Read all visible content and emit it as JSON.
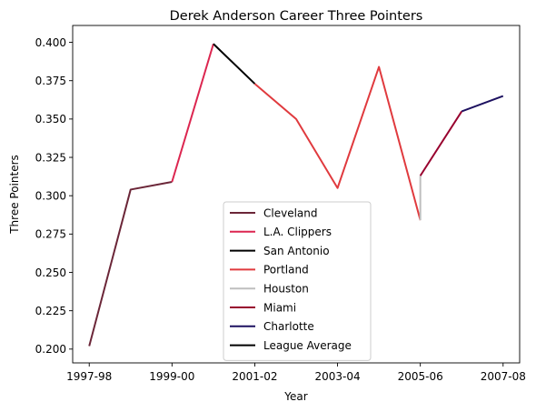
{
  "chart_data": {
    "type": "line",
    "title": "Derek Anderson  Career Three Pointers",
    "xlabel": "Year",
    "ylabel": "Three Pointers",
    "xlim": [
      -0.4,
      10.4
    ],
    "ylim": [
      0.191,
      0.411
    ],
    "xticks": [
      0,
      2,
      4,
      6,
      8,
      10
    ],
    "xtick_labels": [
      "1997-98",
      "1999-00",
      "2001-02",
      "2003-04",
      "2005-06",
      "2007-08"
    ],
    "yticks": [
      0.2,
      0.225,
      0.25,
      0.275,
      0.3,
      0.325,
      0.35,
      0.375,
      0.4
    ],
    "ytick_labels": [
      "0.200",
      "0.225",
      "0.250",
      "0.275",
      "0.300",
      "0.325",
      "0.350",
      "0.375",
      "0.400"
    ],
    "grid": false,
    "legend_position": "lower-center",
    "series": [
      {
        "name": "Cleveland",
        "color": "#6b2638",
        "points": [
          [
            0,
            0.202
          ],
          [
            1,
            0.304
          ],
          [
            2,
            0.309
          ]
        ]
      },
      {
        "name": "L.A. Clippers",
        "color": "#dc2650",
        "points": [
          [
            2,
            0.309
          ],
          [
            3,
            0.399
          ]
        ]
      },
      {
        "name": "San Antonio",
        "color": "#000000",
        "points": [
          [
            3,
            0.399
          ],
          [
            4,
            0.373
          ]
        ]
      },
      {
        "name": "Portland",
        "color": "#e03a3e",
        "points": [
          [
            4,
            0.373
          ],
          [
            5,
            0.35
          ],
          [
            6,
            0.305
          ],
          [
            7,
            0.384
          ],
          [
            8,
            0.284
          ]
        ]
      },
      {
        "name": "Houston",
        "color": "#bfbfbf",
        "points": [
          [
            8,
            0.284
          ],
          [
            8,
            0.313
          ]
        ]
      },
      {
        "name": "Miami",
        "color": "#98002e",
        "points": [
          [
            8,
            0.313
          ],
          [
            9,
            0.355
          ]
        ]
      },
      {
        "name": "Charlotte",
        "color": "#1d1160",
        "points": [
          [
            9,
            0.355
          ],
          [
            10,
            0.365
          ]
        ]
      },
      {
        "name": "League Average",
        "color": "#000000",
        "points": []
      }
    ]
  }
}
